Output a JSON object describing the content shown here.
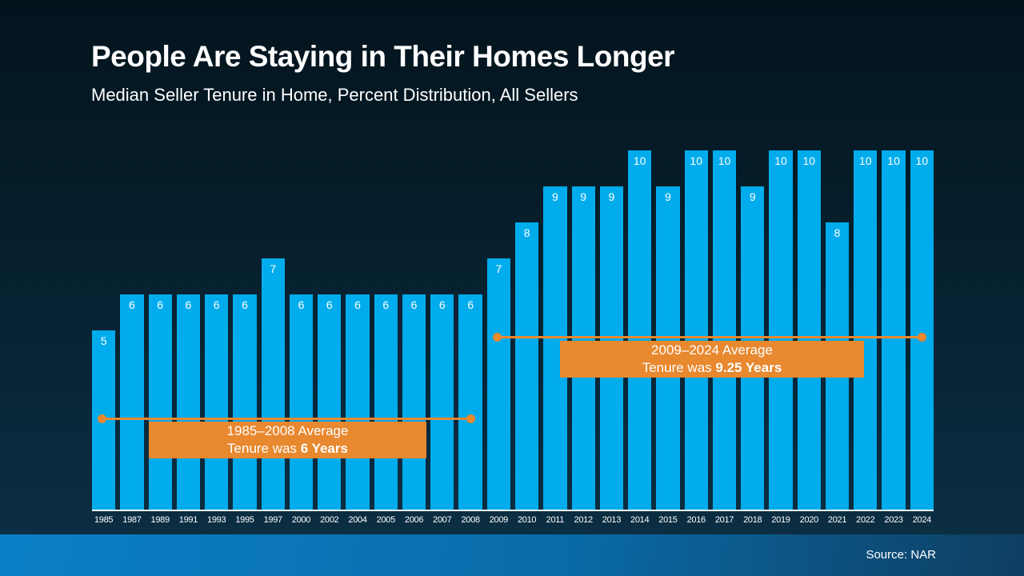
{
  "header": {
    "title": "People Are Staying in Their Homes Longer",
    "subtitle": "Median Seller Tenure in Home, Percent Distribution, All Sellers"
  },
  "chart_data": {
    "type": "bar",
    "title": "Median Seller Tenure in Home, Percent Distribution, All Sellers",
    "categories": [
      "1985",
      "1987",
      "1989",
      "1991",
      "1993",
      "1995",
      "1997",
      "2000",
      "2002",
      "2004",
      "2005",
      "2006",
      "2007",
      "2008",
      "2009",
      "2010",
      "2011",
      "2012",
      "2013",
      "2014",
      "2015",
      "2016",
      "2017",
      "2018",
      "2019",
      "2020",
      "2021",
      "2022",
      "2023",
      "2024"
    ],
    "values": [
      5,
      6,
      6,
      6,
      6,
      6,
      7,
      6,
      6,
      6,
      6,
      6,
      6,
      6,
      7,
      8,
      9,
      9,
      9,
      10,
      9,
      10,
      10,
      9,
      10,
      10,
      8,
      10,
      10,
      10
    ],
    "xlabel": "",
    "ylabel": "",
    "ylim": [
      0,
      10
    ],
    "grid": false,
    "legend_position": "none",
    "bar_color": "#00acec",
    "value_labels_shown": true,
    "annotations": [
      {
        "line1": "1985–2008 Average",
        "line2_prefix": "Tenure was ",
        "line2_bold": "6 Years",
        "span_start": "1985",
        "span_end": "2008"
      },
      {
        "line1": "2009–2024 Average",
        "line2_prefix": "Tenure was ",
        "line2_bold": "9.25 Years",
        "span_start": "2009",
        "span_end": "2024"
      }
    ]
  },
  "footer": {
    "source": "Source: NAR"
  },
  "colors": {
    "bar_blue": "#00acec",
    "accent_orange": "#e8882f",
    "background_top": "#03141d",
    "background_bottom": "#0c3046",
    "footer_blue_left": "#0b80c8",
    "footer_blue_right": "#0e3e61",
    "text": "#ffffff"
  }
}
